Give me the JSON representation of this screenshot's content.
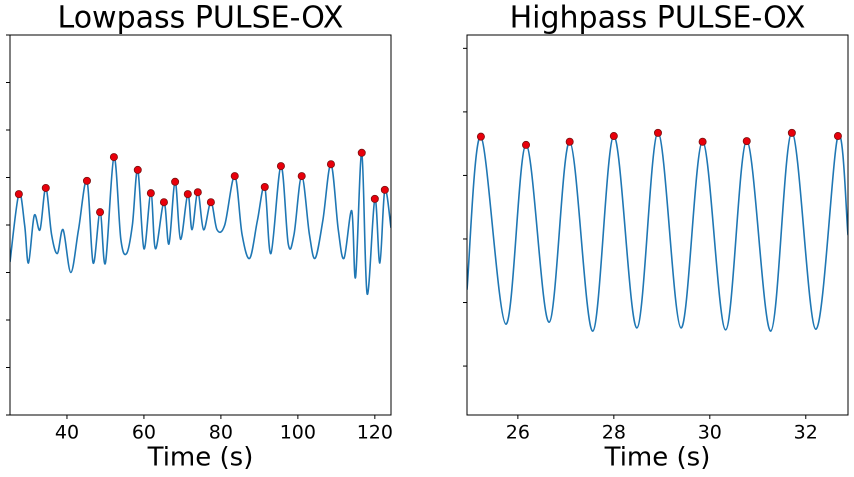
{
  "chart_data": [
    {
      "type": "line",
      "title": "Lowpass PULSE-OX",
      "x_label": "Time (s)",
      "xlim": [
        25.2,
        124.2
      ],
      "xticks": [
        40,
        60,
        80,
        100,
        120
      ],
      "ylim": [
        0,
        8
      ],
      "yticks": [
        0,
        1,
        2,
        3,
        4,
        5,
        6,
        7,
        8
      ],
      "series": [
        {
          "mode": "line",
          "color": "#1f77b4",
          "x": [
            25.2,
            27.5,
            29.0,
            30.0,
            31.5,
            33.0,
            34.5,
            36.0,
            37.5,
            39.0,
            41.0,
            43.0,
            45.2,
            46.8,
            48.6,
            50.0,
            52.2,
            54.0,
            55.5,
            57.0,
            58.4,
            60.0,
            61.8,
            63.0,
            65.2,
            66.5,
            68.1,
            69.5,
            71.4,
            72.5,
            74.0,
            75.5,
            77.4,
            79.0,
            81.0,
            83.6,
            85.5,
            87.5,
            89.5,
            91.4,
            93.0,
            95.6,
            97.5,
            99.0,
            101.0,
            103.0,
            104.5,
            106.5,
            108.6,
            110.5,
            112.0,
            114.0,
            115.0,
            116.6,
            118.0,
            120.0,
            121.3,
            122.6,
            124.2
          ],
          "values": [
            3.22,
            4.65,
            4.0,
            3.2,
            4.2,
            3.9,
            4.78,
            3.8,
            3.4,
            3.9,
            3.0,
            3.9,
            4.93,
            3.2,
            4.27,
            3.2,
            5.43,
            3.7,
            3.4,
            4.0,
            5.16,
            3.5,
            4.67,
            3.5,
            4.48,
            3.6,
            4.91,
            3.7,
            4.65,
            3.9,
            4.69,
            3.9,
            4.48,
            3.9,
            4.0,
            5.03,
            3.8,
            3.3,
            4.1,
            4.8,
            3.4,
            5.24,
            3.6,
            3.8,
            5.03,
            3.8,
            3.3,
            4.1,
            5.28,
            3.9,
            3.3,
            4.3,
            2.9,
            5.52,
            2.55,
            4.55,
            3.2,
            4.74,
            3.94
          ]
        },
        {
          "mode": "markers",
          "color": "#e8000b",
          "x": [
            27.5,
            34.5,
            45.2,
            48.6,
            52.2,
            58.4,
            61.8,
            65.2,
            68.1,
            71.4,
            74.0,
            77.4,
            83.6,
            91.4,
            95.6,
            101.0,
            108.6,
            116.6,
            120.0,
            122.6
          ],
          "values": [
            4.65,
            4.78,
            4.93,
            4.27,
            5.43,
            5.16,
            4.67,
            4.48,
            4.91,
            4.65,
            4.69,
            4.48,
            5.03,
            4.8,
            5.24,
            5.03,
            5.28,
            5.52,
            4.55,
            4.74
          ]
        }
      ]
    },
    {
      "type": "line",
      "title": "Highpass PULSE-OX",
      "x_label": "Time (s)",
      "xlim": [
        24.94,
        32.88
      ],
      "xticks": [
        26,
        28,
        30,
        32
      ],
      "ylim": [
        -0.77,
        5.21
      ],
      "yticks": [
        0,
        1,
        2,
        3,
        4,
        5
      ],
      "series": [
        {
          "mode": "line",
          "color": "#1f77b4",
          "x": [
            24.94,
            25.23,
            25.75,
            26.17,
            26.65,
            27.08,
            27.56,
            28.0,
            28.48,
            28.92,
            29.4,
            29.85,
            30.33,
            30.77,
            31.27,
            31.71,
            32.21,
            32.67,
            32.88
          ],
          "values": [
            1.2,
            3.61,
            0.66,
            3.48,
            0.69,
            3.53,
            0.55,
            3.62,
            0.6,
            3.67,
            0.6,
            3.53,
            0.57,
            3.54,
            0.55,
            3.67,
            0.58,
            3.62,
            2.06
          ]
        },
        {
          "mode": "markers",
          "color": "#e8000b",
          "x": [
            25.23,
            26.17,
            27.08,
            28.0,
            28.92,
            29.85,
            30.77,
            31.71,
            32.67
          ],
          "values": [
            3.61,
            3.48,
            3.53,
            3.62,
            3.67,
            3.53,
            3.54,
            3.67,
            3.62
          ]
        }
      ]
    }
  ]
}
